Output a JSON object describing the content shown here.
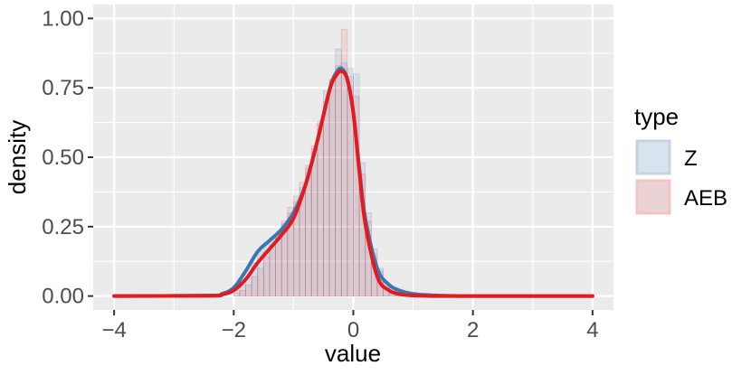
{
  "chart_data": {
    "type": "histogram+density",
    "xlabel": "value",
    "ylabel": "density",
    "xlim": [
      -4.35,
      4.35
    ],
    "ylim": [
      -0.05,
      1.05
    ],
    "x_ticks": [
      -4,
      -2,
      0,
      2,
      4
    ],
    "x_tick_labels": [
      "−4",
      "−2",
      "0",
      "2",
      "4"
    ],
    "y_ticks": [
      0,
      0.25,
      0.5,
      0.75,
      1.0
    ],
    "y_tick_labels": [
      "0.00",
      "0.25",
      "0.50",
      "0.75",
      "1.00"
    ],
    "grid": true,
    "legend": {
      "title": "type",
      "placement": "right"
    },
    "histogram": {
      "bin_edges": [
        -2.0,
        -1.9,
        -1.8,
        -1.7,
        -1.6,
        -1.5,
        -1.4,
        -1.3,
        -1.2,
        -1.1,
        -1.0,
        -0.9,
        -0.8,
        -0.7,
        -0.6,
        -0.5,
        -0.4,
        -0.3,
        -0.2,
        -0.1,
        0.0,
        0.1,
        0.2,
        0.3,
        0.4,
        0.5,
        0.6,
        0.7,
        0.8,
        0.9,
        1.0
      ],
      "series": [
        {
          "name": "Z",
          "values": [
            0.02,
            0.04,
            0.07,
            0.12,
            0.16,
            0.19,
            0.21,
            0.23,
            0.26,
            0.3,
            0.34,
            0.39,
            0.46,
            0.53,
            0.63,
            0.74,
            0.78,
            0.89,
            0.84,
            0.82,
            0.8,
            0.48,
            0.3,
            0.17,
            0.1,
            0.05,
            0.03,
            0.02,
            0.01,
            0.0
          ]
        },
        {
          "name": "AEB",
          "values": [
            0.01,
            0.02,
            0.04,
            0.07,
            0.1,
            0.14,
            0.18,
            0.22,
            0.27,
            0.32,
            0.36,
            0.41,
            0.47,
            0.54,
            0.62,
            0.7,
            0.78,
            0.83,
            0.96,
            0.79,
            0.72,
            0.44,
            0.27,
            0.15,
            0.09,
            0.05,
            0.03,
            0.02,
            0.01,
            0.0
          ]
        }
      ]
    },
    "density": {
      "x": [
        -4.0,
        -2.4,
        -2.2,
        -2.0,
        -1.8,
        -1.6,
        -1.4,
        -1.2,
        -1.0,
        -0.8,
        -0.6,
        -0.4,
        -0.3,
        -0.2,
        -0.1,
        0.0,
        0.1,
        0.2,
        0.4,
        0.6,
        0.8,
        1.0,
        1.2,
        1.4,
        1.6,
        2.0,
        4.0
      ],
      "series": [
        {
          "name": "Z",
          "color": "#3a78b4",
          "values": [
            0.0,
            0.002,
            0.008,
            0.03,
            0.09,
            0.16,
            0.2,
            0.24,
            0.3,
            0.4,
            0.56,
            0.74,
            0.8,
            0.82,
            0.78,
            0.66,
            0.46,
            0.28,
            0.1,
            0.04,
            0.018,
            0.008,
            0.004,
            0.002,
            0.001,
            0.0,
            0.0
          ]
        },
        {
          "name": "AEB",
          "color": "#e41a1c",
          "values": [
            0.0,
            0.001,
            0.005,
            0.02,
            0.06,
            0.12,
            0.17,
            0.22,
            0.28,
            0.4,
            0.56,
            0.74,
            0.79,
            0.81,
            0.78,
            0.66,
            0.45,
            0.26,
            0.07,
            0.02,
            0.006,
            0.002,
            0.001,
            0.0,
            0.0,
            0.0,
            0.0
          ]
        }
      ]
    }
  },
  "colors": {
    "panel_background": "#ebebeb",
    "grid_major": "#ffffff",
    "z_fill": "#d9e3ed",
    "z_outline": "#c3d3e4",
    "aeb_fill": "#ead2d5",
    "aeb_outline": "#f2c4c6"
  }
}
